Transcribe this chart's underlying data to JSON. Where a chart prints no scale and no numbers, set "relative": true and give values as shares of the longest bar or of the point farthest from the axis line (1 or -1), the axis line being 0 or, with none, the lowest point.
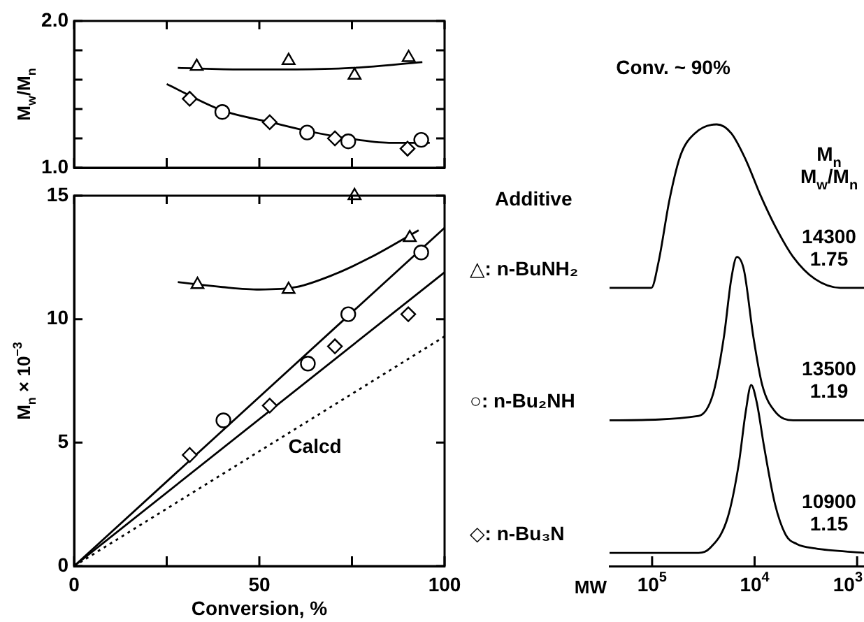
{
  "chart_data": [
    {
      "type": "scatter",
      "ylabel": "M$_{w}$/M$_{n}$",
      "xlim": [
        0,
        100
      ],
      "ylim": [
        1,
        2
      ],
      "xticks": [
        {
          "value": 0,
          "label": null
        },
        {
          "value": 25,
          "label": null
        },
        {
          "value": 50,
          "label": null
        },
        {
          "value": 75,
          "label": null
        },
        {
          "value": 100,
          "label": null
        }
      ],
      "yticks": [
        {
          "value": 1,
          "label": "1.0"
        },
        {
          "value": 1.2,
          "label": null
        },
        {
          "value": 1.4,
          "label": null
        },
        {
          "value": 1.6,
          "label": null
        },
        {
          "value": 1.8,
          "label": null
        },
        {
          "value": 2,
          "label": "2.0"
        }
      ],
      "tick_labels": "y",
      "series": [
        {
          "marker": "triangle",
          "color": "#000000",
          "x": [
            33.1,
            57.9,
            75.7,
            90.3
          ],
          "values": [
            1.69,
            1.73,
            1.63,
            1.75
          ]
        },
        {
          "marker": "circle",
          "color": "#000000",
          "x": [
            40,
            62.9,
            74,
            93.7
          ],
          "values": [
            1.38,
            1.24,
            1.18,
            1.19
          ]
        },
        {
          "marker": "diamond",
          "color": "#000000",
          "x": [
            31.2,
            52.8,
            70.4,
            90
          ],
          "values": [
            1.47,
            1.31,
            1.2,
            1.13
          ]
        },
        {
          "type": "line",
          "marker": "none",
          "color": "#000000",
          "x": [
            28,
            45,
            60,
            75,
            94
          ],
          "values": [
            1.68,
            1.67,
            1.67,
            1.68,
            1.72
          ]
        },
        {
          "type": "line",
          "marker": "none",
          "color": "#000000",
          "x": [
            25,
            40,
            53,
            63,
            74,
            85,
            96
          ],
          "values": [
            1.57,
            1.39,
            1.31,
            1.25,
            1.2,
            1.17,
            1.17
          ]
        }
      ]
    },
    {
      "type": "scatter",
      "xlabel": "Conversion, %",
      "ylabel": "M$_{n}$ × 10$^{−3}$",
      "xlim": [
        0,
        100
      ],
      "ylim": [
        0,
        15
      ],
      "xticks": [
        0,
        {
          "value": 25,
          "label": null
        },
        50,
        {
          "value": 75,
          "label": null
        },
        100
      ],
      "yticks": [
        0,
        5,
        10,
        15
      ],
      "annotations": [
        "Calcd"
      ],
      "series": [
        {
          "marker": "triangle",
          "color": "#000000",
          "x": [
            33.3,
            57.9,
            75.7,
            90.6
          ],
          "values": [
            11.4,
            11.2,
            15,
            13.3
          ]
        },
        {
          "marker": "circle",
          "color": "#000000",
          "x": [
            40.3,
            63.1,
            74,
            93.7
          ],
          "values": [
            5.9,
            8.2,
            10.2,
            12.7
          ]
        },
        {
          "marker": "diamond",
          "color": "#000000",
          "x": [
            31.2,
            52.8,
            70.4,
            90.2
          ],
          "values": [
            4.5,
            6.5,
            8.9,
            10.2
          ]
        },
        {
          "type": "line",
          "marker": "none",
          "color": "#000000",
          "x": [
            28,
            40,
            50,
            60,
            70,
            80,
            93
          ],
          "values": [
            11.5,
            11.3,
            11.2,
            11.3,
            11.8,
            12.5,
            13.6
          ]
        },
        {
          "type": "line",
          "marker": "none",
          "color": "#000000",
          "x": [
            0,
            100
          ],
          "values": [
            0,
            13.7
          ]
        },
        {
          "type": "line",
          "marker": "none",
          "color": "#000000",
          "x": [
            0,
            100
          ],
          "values": [
            0,
            11.9
          ]
        },
        {
          "type": "line",
          "marker": "none",
          "line_style": "dotted",
          "color": "#000000",
          "x": [
            0,
            100
          ],
          "values": [
            0,
            9.3
          ]
        }
      ]
    },
    {
      "type": "line",
      "relative": true,
      "title": "Conv. ~ 90%",
      "legend_title": "Additive",
      "xlabel": "MW",
      "log": "x",
      "xlim": [
        260000,
        857
      ],
      "xticks": [
        {
          "value": 100000,
          "label": "10$^{5}$"
        },
        {
          "value": 10000,
          "label": "10$^{4}$"
        },
        {
          "value": 1000,
          "label": "10$^{3}$"
        }
      ],
      "tick_labels": "x",
      "marker": "none",
      "annotations": [
        "M$_{n}$",
        "M$_{w}$/M$_{n}$",
        "14300",
        "1.75",
        "13500",
        "1.19",
        "10900",
        "1.15"
      ],
      "series": [
        {
          "name": "△: n-BuNH₂",
          "color": "#000000",
          "x": [
            260000,
            101600,
            86300,
            67600,
            52800,
            38200,
            23400,
            16900,
            12200,
            8780,
            6320,
            4210,
            2580,
            1460,
            857
          ],
          "values": [
            0.63,
            0.63,
            0.69,
            0.83,
            0.93,
            0.98,
            1.0,
            0.98,
            0.92,
            0.84,
            0.77,
            0.7,
            0.65,
            0.63,
            0.63
          ]
        },
        {
          "name": "○: n-Bu₂NH",
          "color": "#000000",
          "x": [
            260000,
            35200,
            25400,
            19900,
            16900,
            14900,
            12700,
            10300,
            8430,
            6320,
            4210,
            857
          ],
          "values": [
            0.33,
            0.34,
            0.39,
            0.52,
            0.65,
            0.7,
            0.67,
            0.52,
            0.41,
            0.35,
            0.33,
            0.33
          ]
        },
        {
          "name": "◇: n-Bu₃N",
          "color": "#000000",
          "x": [
            260000,
            35200,
            27500,
            18300,
            14300,
            12200,
            10800,
            9520,
            8080,
            6320,
            4950,
            3870,
            2580,
            857
          ],
          "values": [
            0.03,
            0.03,
            0.04,
            0.11,
            0.23,
            0.35,
            0.41,
            0.37,
            0.27,
            0.14,
            0.07,
            0.05,
            0.04,
            0.03
          ]
        }
      ]
    }
  ]
}
